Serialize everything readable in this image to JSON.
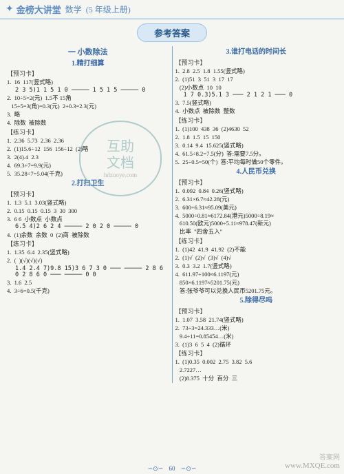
{
  "header": {
    "brand": "金榜大讲堂",
    "subject": "数学",
    "grade": "(5 年级上册)"
  },
  "answerTitle": "参考答案",
  "left": {
    "sectionA": "一  小数除法",
    "sub1": "1.精打细算",
    "yuxi1": "【预习卡】",
    "l1": "1.  16  117(竖式略)",
    "div1": "   2 3\n5)1 1 5\n  1 0\n  ─────\n    1 5\n    1 5\n  ─────\n     0",
    "l2": "2.  10÷5=2(元)  1.5不 15角",
    "l3": "   15÷5=3(角)=0.3(元)  2+0.3=2.3(元)",
    "l4": "3.  略",
    "l5": "4.  除数  被除数",
    "lianxi1": "【练习卡】",
    "l6": "1.  2.36  5.73  2.36  2.36",
    "l7": "2.  (1)15.6÷12  156  156÷12  (2)略",
    "l8": "3.  2(4).4  2.3",
    "l9": "4.  69.3÷7=9.9(元)",
    "l10": "5.  35.28÷7=5.04(千克)",
    "sub2": "2.打扫卫生",
    "yuxi2": "【预习卡】",
    "l11": "1.  1.3  5.1  3.03(竖式略)",
    "l12": "2.  0.15  0.15  0.15  3  30  300",
    "l13": "3.  6 6  小数点  小数点",
    "div2": "    6.5\n4)2 6\n  2 4\n ─────\n    2 0\n    2 0\n ─────\n     0",
    "l14": "4.  (1)余数  余数  0  (2)商  被除数",
    "lianxi2": "【练习卡】",
    "l15": "1.  1.35  6.4  2.35(竖式略)",
    "l16": "2.  (  )(√)(√)(√)",
    "div3": "    1.4         2.4\n7)9.8    15)3 6\n  7          3 0\n ───        ─────\n  2 8         6 0\n  2 8         6 0\n ───        ─────\n   0           0",
    "l17": "3.  1.6  2.5",
    "l18": "4.  3÷6=0.5(千克)"
  },
  "right": {
    "sub3": "3.谁打电话的时间长",
    "yuxi3": "【预习卡】",
    "r1": "1.  2.8  2.5  1.8  1.55(竖式略)",
    "r2": "2.  (1)51  3  51  3  17  17",
    "r3": "   (2)小数点  10  10",
    "div4": "      1 7\n0.3)5.1\n    3\n   ───\n    2 1\n    2 1\n   ───\n     0",
    "r4": "3.  7.5(竖式略)",
    "r5": "4.  小数点  被除数  整数",
    "lianxi3": "【练习卡】",
    "r6": "1.  (1)100  438  36  (2)4630  52",
    "r7": "2.  1.8  1.5  15  150",
    "r8": "3.  0.14  9.4  15.625(竖式略)",
    "r9": "4.  61.5÷8.2=7.5(分)  答:需要7.5分。",
    "r10": "5.  25÷0.5=50(个)  答:平均每时做50个零件。",
    "sub4": "4.人民币兑换",
    "yuxi4": "【预习卡】",
    "r11": "1.  0.092  0.84  0.26(竖式略)",
    "r12": "2.  6.31×6.7≈42.28(元)",
    "r13": "3.  600÷6.31≈95.09(美元)",
    "r14": "4.  5000÷0.81≈6172.84(港元)5000÷8.19≈\n   610.50(欧元)5000÷5.11≈978.47(新元)",
    "r15": "   比率  \"四舍五入\"",
    "lianxi4": "【练习卡】",
    "r16": "1.  (1)42  41.9  41.92  (2)不能",
    "r17": "2.  (1)√  (2)√  (3)√  (4)√",
    "r18": "3.  0.3  3.2  1.7(竖式略)",
    "r19": "4.  611.97÷100≈6.1197(元)",
    "r20": "   850×6.1197≈5201.75(元)",
    "r21": "   答:张爷爷可以兑换人民币5201.75元。",
    "sub5": "5.除得尽吗",
    "yuxi5": "【预习卡】",
    "r22": "1.  1.07  3.58  21.74(竖式略)",
    "r23": "2.  73÷3=24.333…(米)",
    "r24": "   9.4÷11=0.85454…(米)",
    "r25": "3.  (1)3  6  5  4  (2)循环",
    "lianxi5": "【练习卡】",
    "r26": "1.  (1)0.35  0.002  2.75  3.82  5.6",
    "r27": "   2.7227…",
    "r28": "   (2)8.375  十分  百分  三"
  },
  "stamp": {
    "a": "互助",
    "b": "文档",
    "c": "hdzuoye.com"
  },
  "footer": {
    "page": "60"
  },
  "watermark": {
    "a": "答案网",
    "b": "www.MXQE.com"
  }
}
